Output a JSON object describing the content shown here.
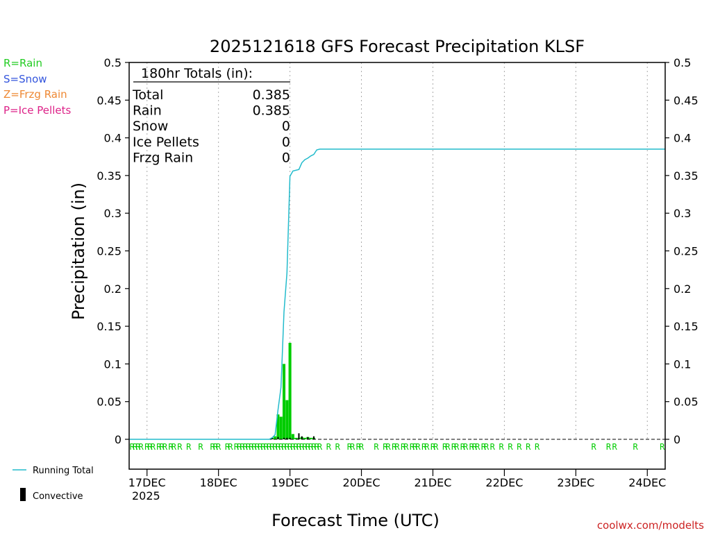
{
  "chart_data": {
    "type": "bar",
    "title": "2025121618 GFS Forecast Precipitation KLSF",
    "xlabel": "Forecast Time (UTC)",
    "ylabel": "Precipitation (in)",
    "ylim": [
      0,
      0.5
    ],
    "x_unit": "hours since 17DEC 00Z",
    "xlim": [
      -6,
      174
    ],
    "y_ticks": [
      "0",
      "0.05",
      "0.1",
      "0.15",
      "0.2",
      "0.25",
      "0.3",
      "0.35",
      "0.4",
      "0.45",
      "0.5"
    ],
    "x_ticks": [
      {
        "hour": 0,
        "label": "17DEC"
      },
      {
        "hour": 24,
        "label": "18DEC"
      },
      {
        "hour": 48,
        "label": "19DEC"
      },
      {
        "hour": 72,
        "label": "20DEC"
      },
      {
        "hour": 96,
        "label": "21DEC"
      },
      {
        "hour": 120,
        "label": "22DEC"
      },
      {
        "hour": 144,
        "label": "23DEC"
      },
      {
        "hour": 168,
        "label": "24DEC"
      }
    ],
    "year_label": "2025",
    "legend": {
      "type_keys": [
        {
          "label": "R=Rain",
          "color": "#22cc22"
        },
        {
          "label": "S=Snow",
          "color": "#3355dd"
        },
        {
          "label": "Z=Frzg Rain",
          "color": "#ee8833"
        },
        {
          "label": "P=Ice Pellets",
          "color": "#dd2288"
        }
      ],
      "running_total_label": "Running Total",
      "convective_label": "Convective"
    },
    "totals_box": {
      "header": "180hr Totals (in):",
      "rows": [
        {
          "label": "Total",
          "value": "0.385"
        },
        {
          "label": "Rain",
          "value": "0.385"
        },
        {
          "label": "Snow",
          "value": "0"
        },
        {
          "label": "Ice Pellets",
          "value": "0"
        },
        {
          "label": "Frzg Rain",
          "value": "0"
        }
      ]
    },
    "series": [
      {
        "name": "Rain",
        "kind": "bar",
        "color": "#00cc00",
        "points": [
          [
            42,
            0.002
          ],
          [
            43,
            0.004
          ],
          [
            44,
            0.033
          ],
          [
            45,
            0.03
          ],
          [
            46,
            0.1
          ],
          [
            47,
            0.052
          ],
          [
            48,
            0.128
          ],
          [
            49,
            0.007
          ],
          [
            50,
            0.002
          ],
          [
            51,
            0.002
          ],
          [
            52,
            0.003
          ],
          [
            53,
            0.002
          ],
          [
            54,
            0.003
          ],
          [
            55,
            0.002
          ],
          [
            56,
            0.002
          ]
        ]
      },
      {
        "name": "Convective",
        "kind": "bar",
        "color": "#000000",
        "points": [
          [
            42,
            0.002
          ],
          [
            44,
            0.003
          ],
          [
            46,
            0.002
          ],
          [
            47,
            0.002
          ],
          [
            48,
            0.002
          ],
          [
            51,
            0.008
          ],
          [
            52,
            0.004
          ],
          [
            54,
            0.003
          ],
          [
            56,
            0.004
          ]
        ]
      },
      {
        "name": "Running Total",
        "kind": "line",
        "color": "#22bbcc",
        "points": [
          [
            -6,
            0
          ],
          [
            41,
            0
          ],
          [
            42,
            0.002
          ],
          [
            43,
            0.006
          ],
          [
            44,
            0.039
          ],
          [
            45,
            0.069
          ],
          [
            46,
            0.169
          ],
          [
            47,
            0.221
          ],
          [
            48,
            0.349
          ],
          [
            49,
            0.356
          ],
          [
            51,
            0.358
          ],
          [
            52,
            0.367
          ],
          [
            53,
            0.371
          ],
          [
            54,
            0.373
          ],
          [
            55,
            0.376
          ],
          [
            56,
            0.378
          ],
          [
            57,
            0.384
          ],
          [
            58,
            0.385
          ],
          [
            174,
            0.385
          ]
        ]
      }
    ],
    "precip_type_hours": [
      -5,
      -4,
      -3,
      -2,
      0,
      1,
      2,
      4,
      5,
      6,
      8,
      9,
      11,
      14,
      18,
      22,
      23,
      24,
      27,
      28,
      30,
      31,
      32,
      33,
      34,
      35,
      36,
      37,
      38,
      39,
      40,
      41,
      42,
      43,
      44,
      45,
      46,
      47,
      48,
      49,
      50,
      51,
      52,
      53,
      54,
      55,
      56,
      57,
      58,
      61,
      64,
      68,
      69,
      71,
      72,
      77,
      80,
      81,
      83,
      84,
      86,
      87,
      89,
      90,
      91,
      93,
      94,
      96,
      97,
      100,
      101,
      103,
      104,
      106,
      107,
      109,
      110,
      111,
      113,
      114,
      116,
      119,
      122,
      125,
      128,
      131,
      150,
      155,
      157,
      164,
      173
    ],
    "precip_type_symbol": "R",
    "credit": "coolwx.com/modelts"
  },
  "colors": {
    "rain": "#00cc00",
    "running_total": "#22bbcc",
    "credit": "#cc2222",
    "grid": "#aaaaaa"
  }
}
